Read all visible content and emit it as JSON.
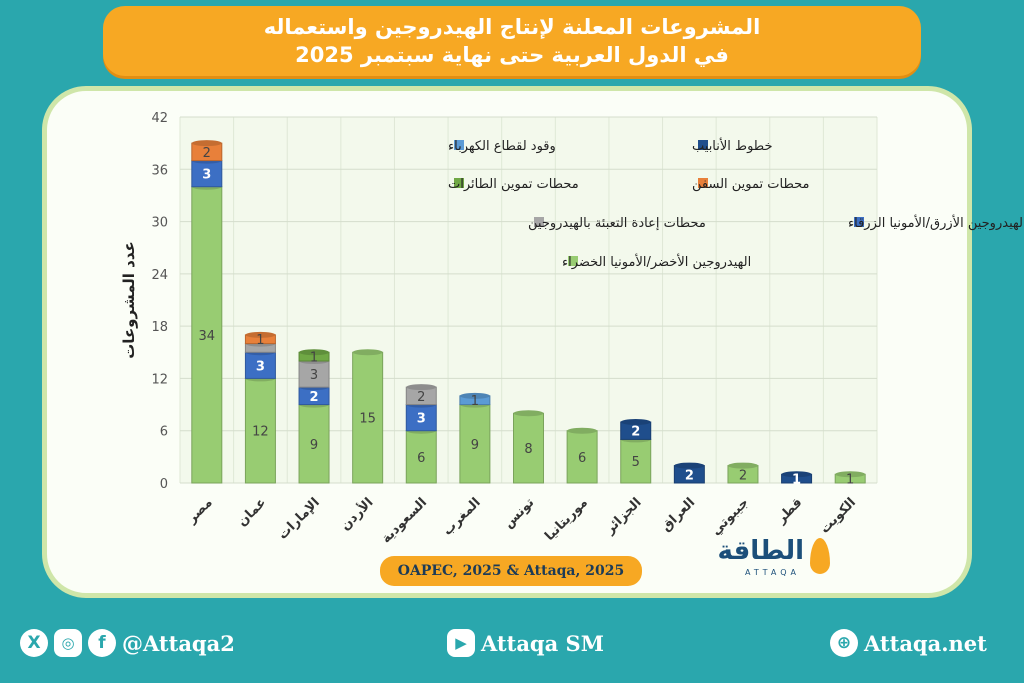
{
  "header": {
    "title_line1": "المشروعات المعلنة لإنتاج الهيدروجين واستعماله",
    "title_line2": "في الدول العربية حتى نهاية سبتمبر 2025"
  },
  "source": "OAPEC, 2025 & Attaqa, 2025",
  "logo": {
    "text": "الطاقة",
    "sub": "ATTAQA"
  },
  "footer": {
    "social_handle": "@Attaqa2",
    "youtube_handle": "Attaqa SM",
    "website": "Attaqa.net",
    "icons": [
      "x-icon",
      "instagram-icon",
      "facebook-icon",
      "youtube-icon",
      "globe-icon"
    ]
  },
  "chart_data": {
    "type": "bar",
    "stacked": true,
    "ylabel": "عدد المشروعات",
    "ylim": [
      0,
      42
    ],
    "yticks": [
      0,
      6,
      12,
      18,
      24,
      30,
      36,
      42
    ],
    "grid": true,
    "legend_position": "top-right, inside plot",
    "categories": [
      "مصر",
      "عمان",
      "الإمارات",
      "الأردن",
      "السعودية",
      "المغرب",
      "تونس",
      "موريتانيا",
      "الجزائر",
      "العراق",
      "جيبوتي",
      "قطر",
      "الكويت"
    ],
    "series": [
      {
        "name": "الهيدروجين الأخضر/الأمونيا الخضراء",
        "color": "#98cc72",
        "values": [
          34,
          12,
          9,
          15,
          6,
          9,
          8,
          6,
          5,
          0,
          2,
          0,
          1
        ],
        "labels": [
          true,
          true,
          true,
          true,
          true,
          true,
          true,
          true,
          true,
          false,
          true,
          false,
          true
        ]
      },
      {
        "name": "الهيدروجين الأزرق/الأمونيا الزرقاء",
        "color": "#3c6fc4",
        "values": [
          3,
          3,
          2,
          0,
          3,
          0,
          0,
          0,
          0,
          0,
          0,
          0,
          0
        ],
        "labels": [
          true,
          true,
          true,
          false,
          true,
          false,
          false,
          false,
          false,
          false,
          false,
          false,
          false
        ]
      },
      {
        "name": "محطات إعادة التعبئة بالهيدروجين",
        "color": "#a6a6a6",
        "values": [
          0,
          1,
          3,
          0,
          2,
          0,
          0,
          0,
          0,
          0,
          0,
          0,
          0
        ],
        "labels": [
          false,
          false,
          true,
          false,
          true,
          false,
          false,
          false,
          false,
          false,
          false,
          false,
          false
        ]
      },
      {
        "name": "محطات تموين الطائرات",
        "color": "#70a845",
        "values": [
          0,
          0,
          1,
          0,
          0,
          0,
          0,
          0,
          0,
          0,
          0,
          0,
          0
        ],
        "labels": [
          false,
          false,
          true,
          false,
          false,
          false,
          false,
          false,
          false,
          false,
          false,
          false,
          false
        ]
      },
      {
        "name": "محطات تموين السفن",
        "color": "#e8803a",
        "values": [
          2,
          1,
          0,
          0,
          0,
          0,
          0,
          0,
          0,
          0,
          0,
          0,
          0
        ],
        "labels": [
          true,
          true,
          false,
          false,
          false,
          false,
          false,
          false,
          false,
          false,
          false,
          false,
          false
        ]
      },
      {
        "name": "وقود لقطاع الكهرباء",
        "color": "#5b9bd5",
        "values": [
          0,
          0,
          0,
          0,
          0,
          1,
          0,
          0,
          0,
          0,
          0,
          0,
          0
        ],
        "labels": [
          false,
          false,
          false,
          false,
          false,
          true,
          false,
          false,
          false,
          false,
          false,
          false,
          false
        ]
      },
      {
        "name": "خطوط الأنابيب",
        "color": "#1f4e8c",
        "values": [
          0,
          0,
          0,
          0,
          0,
          0,
          0,
          0,
          2,
          2,
          0,
          1,
          0
        ],
        "labels": [
          false,
          false,
          false,
          false,
          false,
          false,
          false,
          false,
          true,
          true,
          false,
          true,
          false
        ]
      }
    ]
  }
}
